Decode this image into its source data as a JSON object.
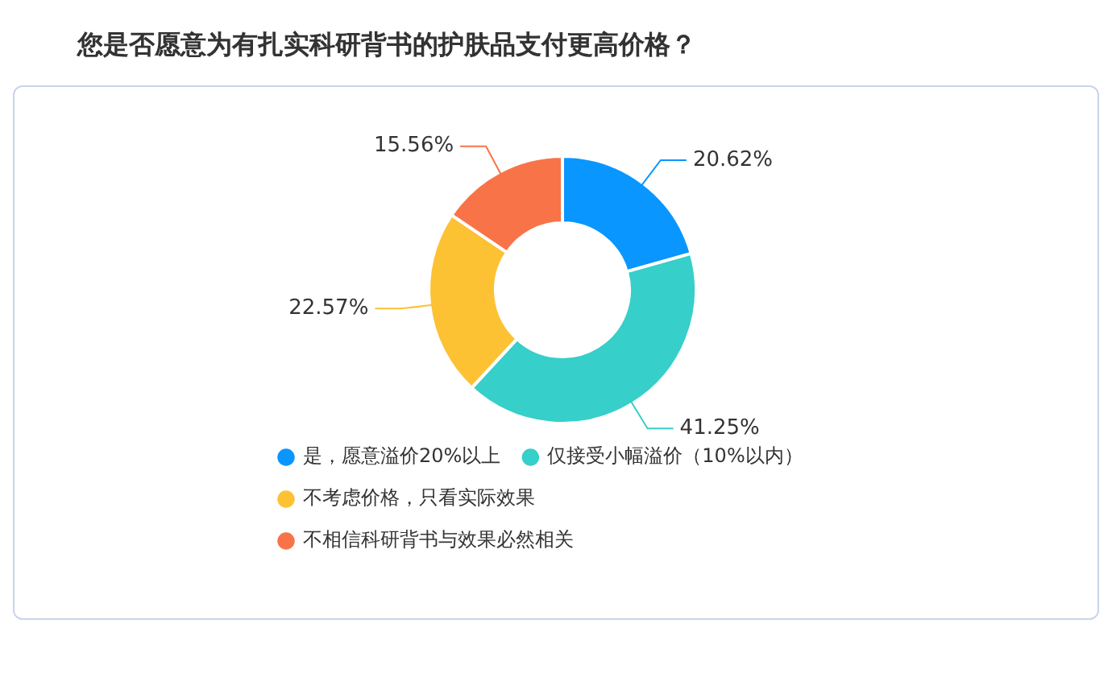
{
  "chart_data": {
    "type": "donut",
    "title": "您是否愿意为有扎实科研背书的护肤品支付更高价格？",
    "categories": [
      "是，愿意溢价20%以上",
      "仅接受小幅溢价（10%以内）",
      "不考虑价格，只看实际效果",
      "不相信科研背书与效果必然相关"
    ],
    "values": [
      20.62,
      41.25,
      22.57,
      15.56
    ],
    "colors": [
      "#0a96ff",
      "#36cfc9",
      "#fcc233",
      "#f87448"
    ],
    "value_labels": [
      "20.62%",
      "41.25%",
      "22.57%",
      "15.56%"
    ],
    "legend": "bottom"
  }
}
